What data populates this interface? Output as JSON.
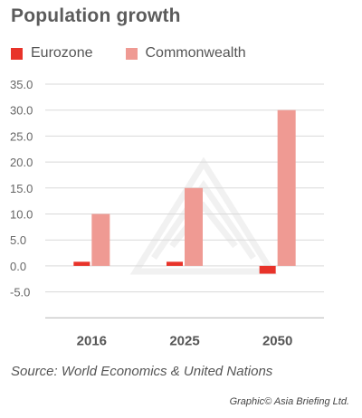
{
  "title": "Population growth",
  "source": "Source: World Economics & United Nations",
  "credit": "Graphic© Asia Briefing Ltd.",
  "colors": {
    "eurozone": "#e8332a",
    "commonwealth": "#ef9a93",
    "gridline": "#d9d9d9",
    "axis_text": "#666666"
  },
  "chart_data": {
    "type": "bar",
    "title": "Population growth",
    "xlabel": "",
    "ylabel": "",
    "categories": [
      "2016",
      "2025",
      "2050"
    ],
    "series": [
      {
        "name": "Eurozone",
        "values": [
          0.8,
          0.8,
          -1.5
        ]
      },
      {
        "name": "Commonwealth",
        "values": [
          10.0,
          15.0,
          30.0
        ]
      }
    ],
    "yticks": [
      "35.0",
      "30.0",
      "25.0",
      "20.0",
      "15.0",
      "10.0",
      "5.0",
      "0.0",
      "-5.0"
    ],
    "ylim": [
      -10,
      35
    ],
    "legend": "top-left",
    "grid": true
  }
}
